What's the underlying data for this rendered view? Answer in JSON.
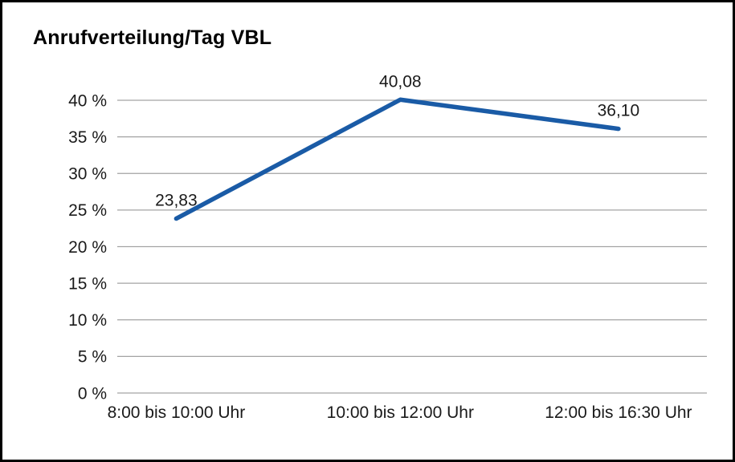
{
  "title": "Anrufverteilung/Tag VBL",
  "chart_data": {
    "type": "line",
    "title": "Anrufverteilung/Tag VBL",
    "categories": [
      "8:00 bis 10:00 Uhr",
      "10:00 bis 12:00 Uhr",
      "12:00 bis 16:30 Uhr"
    ],
    "values": [
      23.83,
      40.08,
      36.1
    ],
    "point_labels": [
      "23,83",
      "40,08",
      "36,10"
    ],
    "ytick_labels": [
      "0 %",
      "5 %",
      "10 %",
      "15 %",
      "20 %",
      "25 %",
      "30 %",
      "35 %",
      "40 %"
    ],
    "ylim": [
      0,
      40
    ],
    "ytick_step": 5,
    "xlabel": "",
    "ylabel": "",
    "grid": true,
    "legend": "none",
    "line_color": "#1a5ba6",
    "grid_color": "#a3a3a3",
    "text_color": "#1a1a1a"
  }
}
